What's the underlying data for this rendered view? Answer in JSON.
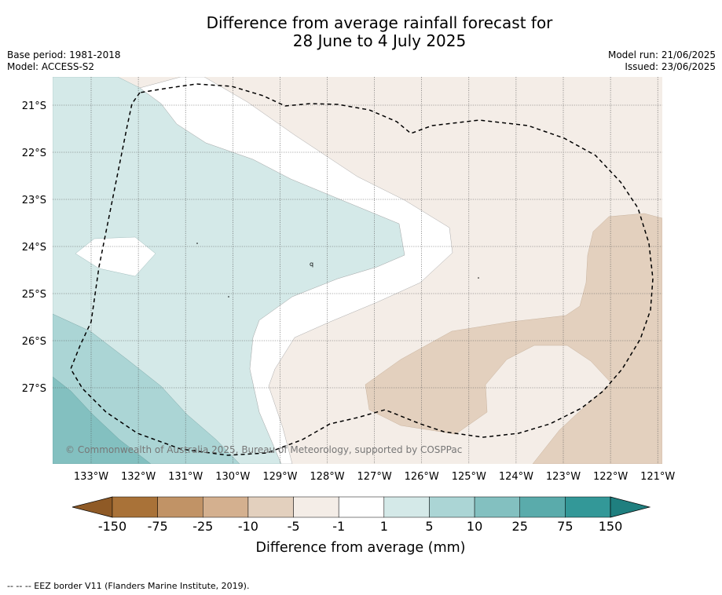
{
  "title_line1": "Difference from average rainfall forecast for",
  "title_line2": "28 June to 4 July 2025",
  "base_period": "Base period: 1981-2018",
  "model": "Model: ACCESS-S2",
  "model_run": "Model run: 21/06/2025",
  "issued": "Issued: 23/06/2025",
  "copyright": "© Commonwealth of Australia 2025, Bureau of Meteorology, supported by COSPPac",
  "latitudes": [
    "21°S",
    "22°S",
    "23°S",
    "24°S",
    "25°S",
    "26°S",
    "27°S"
  ],
  "longitudes": [
    "133°W",
    "132°W",
    "131°W",
    "130°W",
    "129°W",
    "128°W",
    "127°W",
    "126°W",
    "125°W",
    "124°W",
    "123°W",
    "122°W",
    "121°W"
  ],
  "colorbar": {
    "title": "Difference from average (mm)",
    "labels": [
      "-150",
      "-75",
      "-25",
      "-10",
      "-5",
      "-1",
      "1",
      "5",
      "10",
      "25",
      "75",
      "150"
    ],
    "colors": [
      "#a97238",
      "#c19366",
      "#d4b08f",
      "#e3d0be",
      "#f4ede7",
      "#ffffff",
      "#d4e9e8",
      "#abd5d5",
      "#83c0c0",
      "#5aabab",
      "#339898"
    ],
    "extend_low_color": "#8f5a26",
    "extend_high_color": "#1f7f7f"
  },
  "footnote": "-- -- -- EEZ border V11 (Flanders Marine Institute, 2019)."
}
